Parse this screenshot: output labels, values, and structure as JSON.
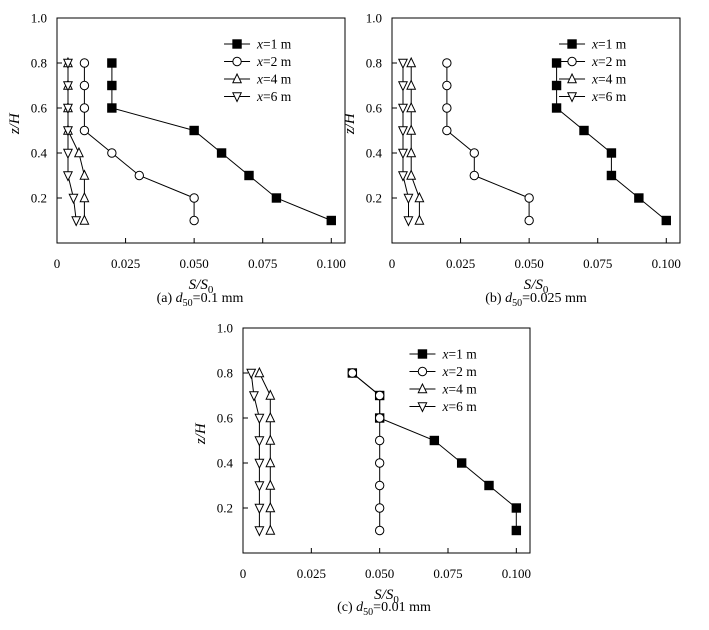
{
  "chart_data": [
    {
      "type": "line",
      "caption": "(a)  d50=0.1 mm",
      "caption_prefix": "(a)  ",
      "caption_var": "d",
      "caption_sub": "50",
      "caption_value": "=0.1 mm",
      "xlabel": "S/S0",
      "ylabel": "z/H",
      "xlim": [
        0,
        0.105
      ],
      "ylim": [
        0,
        1.0
      ],
      "xticks": [
        "0",
        "0.025",
        "0.050",
        "0.075",
        "0.100"
      ],
      "xtick_values": [
        0,
        0.025,
        0.05,
        0.075,
        0.1
      ],
      "yticks": [
        "0.2",
        "0.4",
        "0.6",
        "0.8",
        "1.0"
      ],
      "ytick_values": [
        0.2,
        0.4,
        0.6,
        0.8,
        1.0
      ],
      "legend_position": "top-right",
      "series": [
        {
          "name": "x=1 m",
          "marker": "square-filled",
          "points": [
            [
              0.02,
              0.8
            ],
            [
              0.02,
              0.7
            ],
            [
              0.02,
              0.6
            ],
            [
              0.05,
              0.5
            ],
            [
              0.06,
              0.4
            ],
            [
              0.07,
              0.3
            ],
            [
              0.08,
              0.2
            ],
            [
              0.1,
              0.1
            ]
          ]
        },
        {
          "name": "x=2 m",
          "marker": "circle-open",
          "points": [
            [
              0.01,
              0.8
            ],
            [
              0.01,
              0.7
            ],
            [
              0.01,
              0.6
            ],
            [
              0.01,
              0.5
            ],
            [
              0.02,
              0.4
            ],
            [
              0.03,
              0.3
            ],
            [
              0.05,
              0.2
            ],
            [
              0.05,
              0.1
            ]
          ]
        },
        {
          "name": "x=4 m",
          "marker": "triangle-up-open",
          "points": [
            [
              0.004,
              0.8
            ],
            [
              0.004,
              0.7
            ],
            [
              0.004,
              0.6
            ],
            [
              0.004,
              0.5
            ],
            [
              0.008,
              0.4
            ],
            [
              0.01,
              0.3
            ],
            [
              0.01,
              0.2
            ],
            [
              0.01,
              0.1
            ]
          ]
        },
        {
          "name": "x=6 m",
          "marker": "triangle-down-open",
          "points": [
            [
              0.004,
              0.8
            ],
            [
              0.004,
              0.7
            ],
            [
              0.004,
              0.6
            ],
            [
              0.004,
              0.5
            ],
            [
              0.004,
              0.4
            ],
            [
              0.004,
              0.3
            ],
            [
              0.006,
              0.2
            ],
            [
              0.007,
              0.1
            ]
          ]
        }
      ]
    },
    {
      "type": "line",
      "caption": "(b) d50=0.025 mm",
      "caption_prefix": "(b) ",
      "caption_var": "d",
      "caption_sub": "50",
      "caption_value": "=0.025 mm",
      "xlabel": "S/S0",
      "ylabel": "z/H",
      "xlim": [
        0,
        0.105
      ],
      "ylim": [
        0,
        1.0
      ],
      "xticks": [
        "0",
        "0.025",
        "0.050",
        "0.075",
        "0.100"
      ],
      "xtick_values": [
        0,
        0.025,
        0.05,
        0.075,
        0.1
      ],
      "yticks": [
        "0.2",
        "0.4",
        "0.6",
        "0.8",
        "1.0"
      ],
      "ytick_values": [
        0.2,
        0.4,
        0.6,
        0.8,
        1.0
      ],
      "legend_position": "top-right",
      "series": [
        {
          "name": "x=1 m",
          "marker": "square-filled",
          "points": [
            [
              0.06,
              0.8
            ],
            [
              0.06,
              0.7
            ],
            [
              0.06,
              0.6
            ],
            [
              0.07,
              0.5
            ],
            [
              0.08,
              0.4
            ],
            [
              0.08,
              0.3
            ],
            [
              0.09,
              0.2
            ],
            [
              0.1,
              0.1
            ]
          ]
        },
        {
          "name": "x=2 m",
          "marker": "circle-open",
          "points": [
            [
              0.02,
              0.8
            ],
            [
              0.02,
              0.7
            ],
            [
              0.02,
              0.6
            ],
            [
              0.02,
              0.5
            ],
            [
              0.03,
              0.4
            ],
            [
              0.03,
              0.3
            ],
            [
              0.05,
              0.2
            ],
            [
              0.05,
              0.1
            ]
          ]
        },
        {
          "name": "x=4 m",
          "marker": "triangle-up-open",
          "points": [
            [
              0.007,
              0.8
            ],
            [
              0.007,
              0.7
            ],
            [
              0.007,
              0.6
            ],
            [
              0.007,
              0.5
            ],
            [
              0.007,
              0.4
            ],
            [
              0.007,
              0.3
            ],
            [
              0.01,
              0.2
            ],
            [
              0.01,
              0.1
            ]
          ]
        },
        {
          "name": "x=6 m",
          "marker": "triangle-down-open",
          "points": [
            [
              0.004,
              0.8
            ],
            [
              0.004,
              0.7
            ],
            [
              0.004,
              0.6
            ],
            [
              0.004,
              0.5
            ],
            [
              0.004,
              0.4
            ],
            [
              0.004,
              0.3
            ],
            [
              0.006,
              0.2
            ],
            [
              0.006,
              0.1
            ]
          ]
        }
      ]
    },
    {
      "type": "line",
      "caption": "(c) d50=0.01 mm",
      "caption_prefix": "(c) ",
      "caption_var": "d",
      "caption_sub": "50",
      "caption_value": "=0.01 mm",
      "xlabel": "S/S0",
      "ylabel": "z/H",
      "xlim": [
        0,
        0.105
      ],
      "ylim": [
        0,
        1.0
      ],
      "xticks": [
        "0",
        "0.025",
        "0.050",
        "0.075",
        "0.100"
      ],
      "xtick_values": [
        0,
        0.025,
        0.05,
        0.075,
        0.1
      ],
      "yticks": [
        "0.2",
        "0.4",
        "0.6",
        "0.8",
        "1.0"
      ],
      "ytick_values": [
        0.2,
        0.4,
        0.6,
        0.8,
        1.0
      ],
      "legend_position": "top-right",
      "series": [
        {
          "name": "x=1 m",
          "marker": "square-filled",
          "points": [
            [
              0.04,
              0.8
            ],
            [
              0.05,
              0.7
            ],
            [
              0.05,
              0.6
            ],
            [
              0.07,
              0.5
            ],
            [
              0.08,
              0.4
            ],
            [
              0.09,
              0.3
            ],
            [
              0.1,
              0.2
            ],
            [
              0.1,
              0.1
            ]
          ]
        },
        {
          "name": "x=2 m",
          "marker": "circle-open",
          "points": [
            [
              0.04,
              0.8
            ],
            [
              0.05,
              0.7
            ],
            [
              0.05,
              0.6
            ],
            [
              0.05,
              0.5
            ],
            [
              0.05,
              0.4
            ],
            [
              0.05,
              0.3
            ],
            [
              0.05,
              0.2
            ],
            [
              0.05,
              0.1
            ]
          ]
        },
        {
          "name": "x=4 m",
          "marker": "triangle-up-open",
          "points": [
            [
              0.006,
              0.8
            ],
            [
              0.01,
              0.7
            ],
            [
              0.01,
              0.6
            ],
            [
              0.01,
              0.5
            ],
            [
              0.01,
              0.4
            ],
            [
              0.01,
              0.3
            ],
            [
              0.01,
              0.2
            ],
            [
              0.01,
              0.1
            ]
          ]
        },
        {
          "name": "x=6 m",
          "marker": "triangle-down-open",
          "points": [
            [
              0.003,
              0.8
            ],
            [
              0.004,
              0.7
            ],
            [
              0.006,
              0.6
            ],
            [
              0.006,
              0.5
            ],
            [
              0.006,
              0.4
            ],
            [
              0.006,
              0.3
            ],
            [
              0.006,
              0.2
            ],
            [
              0.006,
              0.1
            ]
          ]
        }
      ]
    }
  ]
}
